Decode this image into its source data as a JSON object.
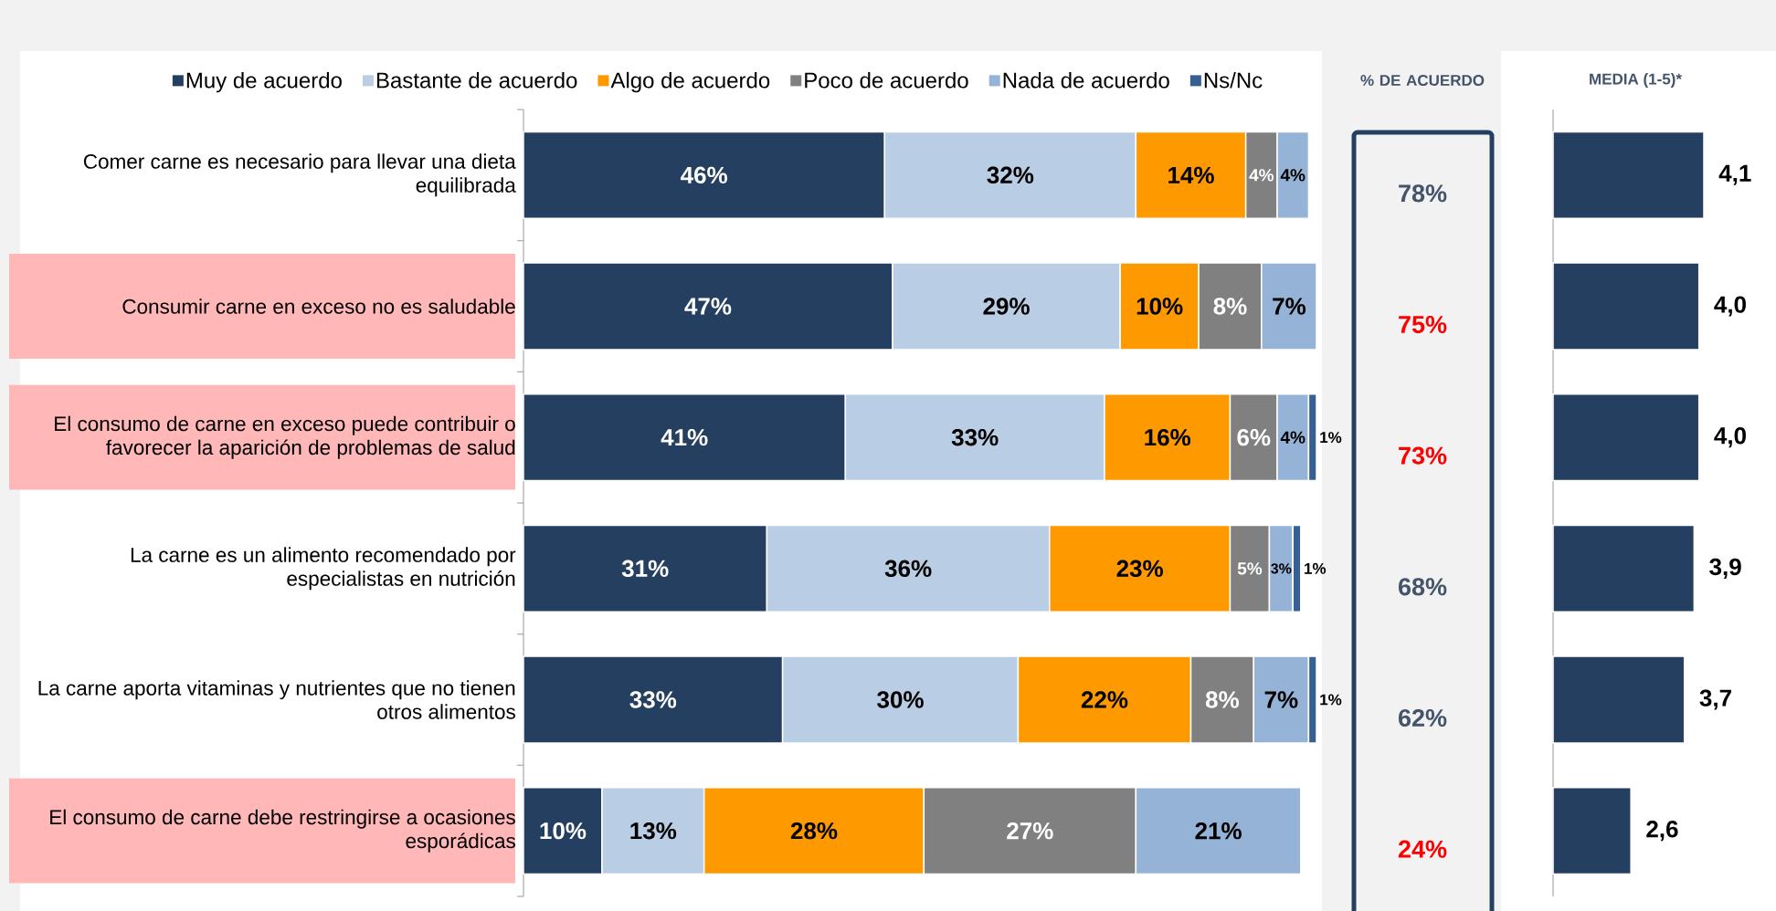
{
  "chart_data": [
    {
      "type": "bar",
      "orientation": "horizontal",
      "stacked": true,
      "categories": [
        "Comer carne es necesario para llevar una dieta equilibrada",
        "Consumir carne en exceso no es saludable",
        "El consumo de carne en exceso puede contribuir o favorecer la aparición de problemas de salud",
        "La carne es un alimento recomendado por especialistas en nutrición",
        "La carne aporta vitaminas y nutrientes que no tienen otros alimentos",
        "El consumo de carne debe restringirse a ocasiones esporádicas"
      ],
      "series": [
        {
          "name": "Muy de acuerdo",
          "color": "#253f60",
          "values": [
            46,
            47,
            41,
            31,
            33,
            10
          ],
          "value_labels": [
            "46%",
            "47%",
            "41%",
            "31%",
            "33%",
            "10%"
          ]
        },
        {
          "name": "Bastante de acuerdo",
          "color": "#b9cde5",
          "values": [
            32,
            29,
            33,
            36,
            30,
            13
          ],
          "value_labels": [
            "32%",
            "29%",
            "33%",
            "36%",
            "30%",
            "13%"
          ]
        },
        {
          "name": "Algo de acuerdo",
          "color": "#ff9900",
          "values": [
            14,
            10,
            16,
            23,
            22,
            28
          ],
          "value_labels": [
            "14%",
            "10%",
            "16%",
            "23%",
            "22%",
            "28%"
          ]
        },
        {
          "name": "Poco de acuerdo",
          "color": "#808080",
          "values": [
            4,
            8,
            6,
            5,
            8,
            27
          ],
          "value_labels": [
            "4%",
            "8%",
            "6%",
            "5%",
            "8%",
            "27%"
          ]
        },
        {
          "name": "Nada de acuerdo",
          "color": "#95b3d7",
          "values": [
            4,
            7,
            4,
            3,
            7,
            21
          ],
          "value_labels": [
            "4%",
            "7%",
            "4%",
            "3%",
            "7%",
            "21%"
          ]
        },
        {
          "name": "Ns/Nc",
          "color": "#376092",
          "values": [
            null,
            null,
            1,
            1,
            1,
            null
          ],
          "value_labels": [
            null,
            null,
            "1%",
            "1%",
            "1%",
            null
          ]
        }
      ],
      "xlim": [
        0,
        101
      ],
      "legend": "top",
      "tick_labels": "y"
    },
    {
      "type": "other",
      "title": "% DE ACUERDO",
      "annotations": [
        "78%",
        "75%",
        "73%",
        "68%",
        "62%",
        "24%"
      ],
      "colors": [
        "#44546a",
        "#ff0000",
        "#ff0000",
        "#44546a",
        "#44546a",
        "#ff0000"
      ]
    },
    {
      "type": "bar",
      "orientation": "horizontal",
      "title": "MEDIA (1-5)*",
      "categories": [
        null,
        null,
        null,
        null,
        null,
        null
      ],
      "values": [
        4.1,
        4.0,
        4.0,
        3.9,
        3.7,
        2.6
      ],
      "value_labels": [
        "4,1",
        "4,0",
        "4,0",
        "3,9",
        "3,7",
        "2,6"
      ],
      "color": "#253f60",
      "xlim": [
        1,
        4.1
      ],
      "tick_labels": false
    }
  ]
}
